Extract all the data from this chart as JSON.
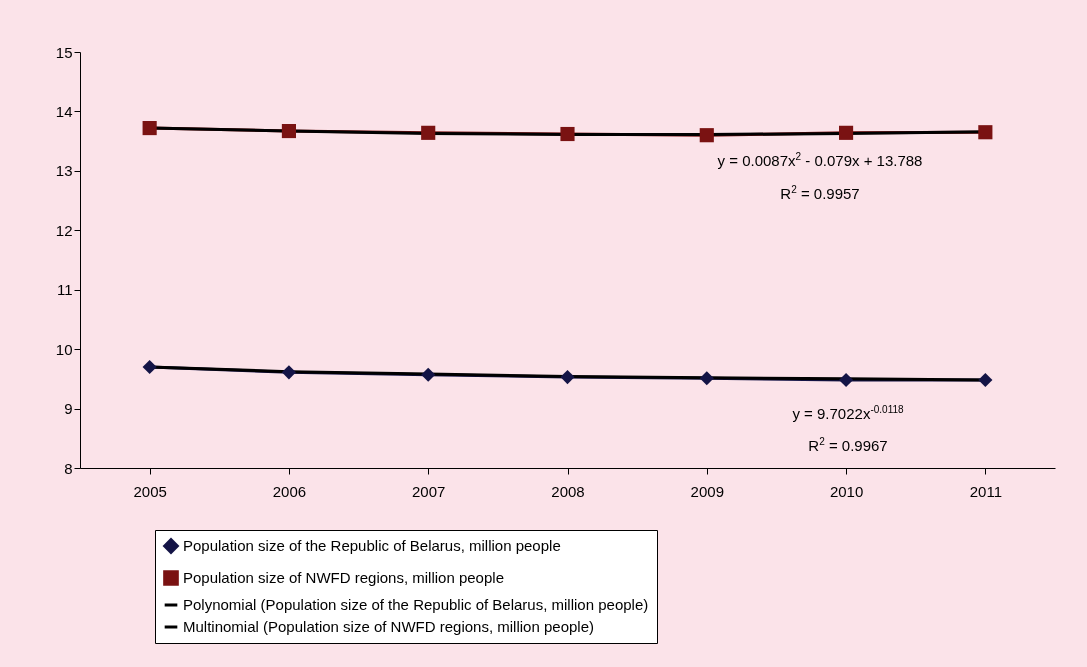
{
  "chart_data": {
    "type": "line",
    "categories": [
      "2005",
      "2006",
      "2007",
      "2008",
      "2009",
      "2010",
      "2011"
    ],
    "ylim": [
      8,
      15
    ],
    "yticks": [
      8,
      9,
      10,
      11,
      12,
      13,
      14,
      15
    ],
    "grid": false,
    "legend": "bottom",
    "series": [
      {
        "name": "Population size of the Republic of Belarus, million people",
        "color": "#141446",
        "marker": "diamond",
        "values": [
          9.7,
          9.61,
          9.57,
          9.53,
          9.51,
          9.48,
          9.48
        ]
      },
      {
        "name": "Population size of NWFD regions, million people",
        "color": "#7a1212",
        "marker": "square",
        "values": [
          13.72,
          13.67,
          13.64,
          13.62,
          13.6,
          13.64,
          13.65
        ]
      },
      {
        "name": "Polynomial (Population size of the Republic of Belarus, million people)",
        "color": "#000000",
        "marker": "none",
        "values": [
          9.7,
          9.62,
          9.58,
          9.54,
          9.52,
          9.5,
          9.48
        ]
      },
      {
        "name": "Multinomial (Population size of NWFD regions, million people)",
        "color": "#000000",
        "marker": "none",
        "values": [
          13.72,
          13.67,
          13.63,
          13.61,
          13.61,
          13.63,
          13.66
        ]
      }
    ],
    "annotations": [
      "y = 0.0087x$^{2}$ - 0.079x + 13.788",
      "R$^{2}$ = 0.9957",
      "y = 9.7022x$^{-0.0118}$",
      "R$^{2}$ = 0.9967"
    ]
  }
}
